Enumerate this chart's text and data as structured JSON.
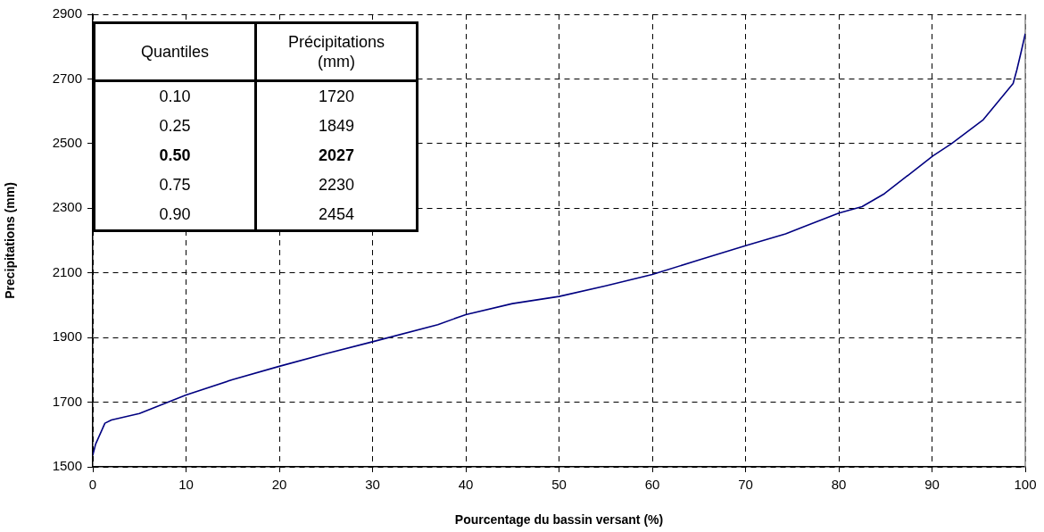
{
  "chart_data": {
    "type": "line",
    "xlabel": "Pourcentage du bassin versant (%)",
    "ylabel": "Precipitations (mm)",
    "series": [
      {
        "color": "#000080",
        "x": [
          0,
          0.3,
          1.3,
          2,
          5,
          10,
          15,
          20,
          25,
          30,
          37,
          40,
          45,
          50,
          55,
          60,
          65,
          70,
          74.3,
          80,
          82.5,
          84.9,
          90.1,
          92.1,
          95.5,
          98.7,
          99.1,
          99.6,
          100
        ],
        "values": [
          1536,
          1570,
          1635,
          1645,
          1665,
          1722,
          1770,
          1811,
          1850,
          1887,
          1940,
          1971,
          2005,
          2027,
          2060,
          2095,
          2140,
          2184,
          2221,
          2285,
          2305,
          2345,
          2462,
          2500,
          2574,
          2686,
          2728,
          2789,
          2840
        ]
      }
    ],
    "xlim": [
      0,
      100
    ],
    "xticks": [
      0,
      10,
      20,
      30,
      40,
      50,
      60,
      70,
      80,
      90,
      100
    ],
    "ylim": [
      1500,
      2900
    ],
    "yticks": [
      1500,
      1700,
      1900,
      2100,
      2300,
      2500,
      2700,
      2900
    ],
    "grid": true,
    "marker": "none",
    "line_style": "solid",
    "legend": false,
    "annotations": [
      "Quantiles",
      "Précipitations (mm)",
      "0.10",
      "1720",
      "0.25",
      "1849",
      "0.50",
      "2027",
      "0.75",
      "2230",
      "0.90",
      "2454"
    ]
  }
}
